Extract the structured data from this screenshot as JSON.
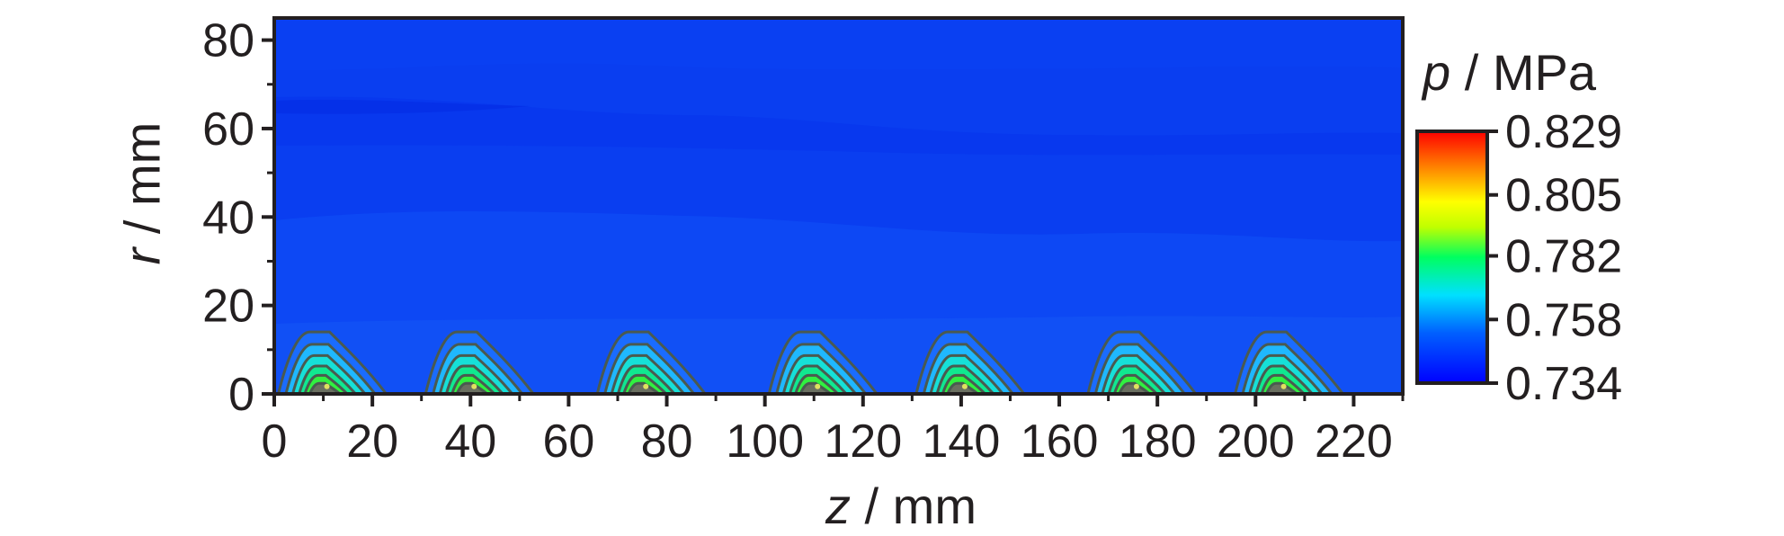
{
  "chart_data": {
    "type": "heatmap",
    "title": "",
    "xlabel": {
      "variable": "z",
      "unit": " / mm"
    },
    "ylabel": {
      "variable": "r",
      "unit": " / mm"
    },
    "xlim": [
      0,
      230
    ],
    "ylim": [
      0,
      85
    ],
    "x_ticks": [
      "0",
      "20",
      "40",
      "60",
      "80",
      "100",
      "120",
      "140",
      "160",
      "180",
      "200",
      "220"
    ],
    "y_ticks": [
      "0",
      "20",
      "40",
      "60",
      "80"
    ],
    "colorbar": {
      "label": {
        "variable": "p",
        "unit": " / MPa"
      },
      "range": [
        0.734,
        0.829
      ],
      "ticks": [
        "0.734",
        "0.758",
        "0.782",
        "0.805",
        "0.829"
      ],
      "colormap": [
        "#0000ff",
        "#0060ff",
        "#00e0ff",
        "#00ff60",
        "#c0ff00",
        "#ffff00",
        "#ff8000",
        "#ff0000"
      ]
    },
    "background_color": "#0a3ef0",
    "peaks": [
      {
        "z": 10,
        "r_extent": 14,
        "p_max": 0.79
      },
      {
        "z": 40,
        "r_extent": 14,
        "p_max": 0.79
      },
      {
        "z": 75,
        "r_extent": 14,
        "p_max": 0.79
      },
      {
        "z": 110,
        "r_extent": 14,
        "p_max": 0.79
      },
      {
        "z": 140,
        "r_extent": 14,
        "p_max": 0.785
      },
      {
        "z": 175,
        "r_extent": 14,
        "p_max": 0.785
      },
      {
        "z": 205,
        "r_extent": 14,
        "p_max": 0.785
      }
    ]
  }
}
